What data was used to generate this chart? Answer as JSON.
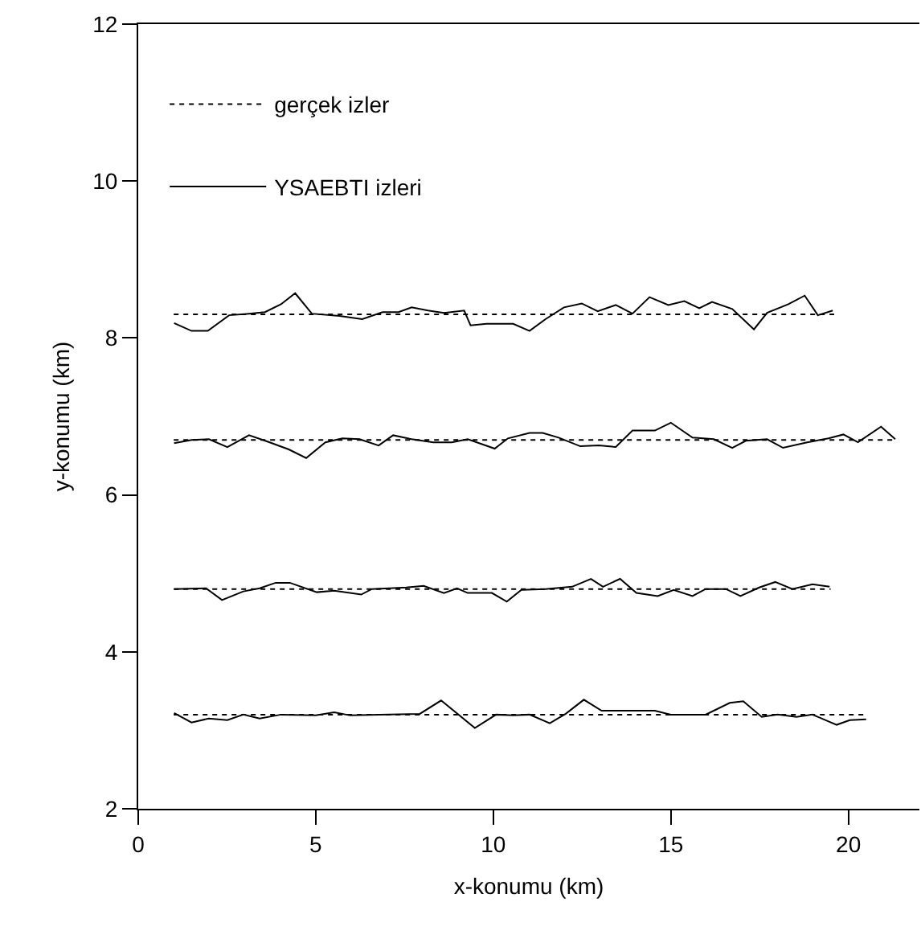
{
  "chart_data": {
    "type": "line",
    "xlabel": "x-konumu (km)",
    "ylabel": "y-konumu (km)",
    "xlim": [
      0,
      22
    ],
    "xticks": [
      0,
      5,
      10,
      15,
      20
    ],
    "ylim": [
      2,
      12
    ],
    "yticks": [
      2,
      4,
      6,
      8,
      10,
      12
    ],
    "legend": "top left",
    "marker": "none",
    "series": [
      {
        "name": "gerçek izler",
        "color": "#000000",
        "line_style": "dotted",
        "x": [
          1.0,
          19.6
        ],
        "values": [
          8.3,
          8.3
        ]
      },
      {
        "color": "#000000",
        "line_style": "dotted",
        "x": [
          1.0,
          21.3
        ],
        "values": [
          6.7,
          6.7
        ]
      },
      {
        "color": "#000000",
        "line_style": "dotted",
        "x": [
          1.0,
          19.5
        ],
        "values": [
          4.8,
          4.8
        ]
      },
      {
        "color": "#000000",
        "line_style": "dotted",
        "x": [
          1.0,
          20.5
        ],
        "values": [
          3.2,
          3.2
        ]
      },
      {
        "name": "YSAEBTI izleri",
        "color": "#000000",
        "line_style": "solid",
        "x": [
          1.01,
          1.5,
          1.96,
          2.56,
          3.12,
          3.57,
          4.02,
          4.42,
          4.89,
          5.67,
          6.31,
          6.88,
          7.33,
          7.7,
          8.16,
          8.61,
          9.18,
          9.36,
          9.81,
          10.56,
          11.02,
          11.47,
          11.99,
          12.49,
          12.94,
          13.45,
          13.92,
          14.4,
          14.93,
          15.38,
          15.8,
          16.16,
          16.73,
          17.34,
          17.71,
          18.31,
          18.77,
          19.14,
          19.56
        ],
        "values": [
          8.19,
          8.09,
          8.09,
          8.29,
          8.31,
          8.33,
          8.43,
          8.57,
          8.31,
          8.28,
          8.24,
          8.33,
          8.33,
          8.39,
          8.35,
          8.32,
          8.35,
          8.16,
          8.18,
          8.18,
          8.09,
          8.24,
          8.39,
          8.44,
          8.34,
          8.42,
          8.31,
          8.52,
          8.42,
          8.47,
          8.38,
          8.46,
          8.37,
          8.11,
          8.32,
          8.43,
          8.54,
          8.29,
          8.35
        ]
      },
      {
        "color": "#000000",
        "line_style": "solid",
        "x": [
          1.01,
          1.5,
          1.99,
          2.51,
          3.12,
          3.64,
          4.24,
          4.73,
          5.27,
          5.75,
          6.23,
          6.77,
          7.18,
          7.7,
          8.31,
          8.83,
          9.28,
          10.04,
          10.41,
          11.02,
          11.39,
          11.84,
          12.45,
          12.97,
          13.45,
          13.92,
          14.55,
          15.0,
          15.61,
          16.21,
          16.73,
          17.11,
          17.71,
          18.16,
          18.84,
          19.44,
          19.86,
          20.27,
          20.92,
          21.32
        ],
        "values": [
          6.66,
          6.7,
          6.71,
          6.61,
          6.76,
          6.68,
          6.58,
          6.47,
          6.67,
          6.72,
          6.71,
          6.63,
          6.76,
          6.71,
          6.67,
          6.67,
          6.71,
          6.59,
          6.72,
          6.79,
          6.79,
          6.73,
          6.62,
          6.63,
          6.61,
          6.82,
          6.82,
          6.92,
          6.73,
          6.71,
          6.6,
          6.69,
          6.71,
          6.6,
          6.67,
          6.72,
          6.77,
          6.67,
          6.87,
          6.71
        ]
      },
      {
        "color": "#000000",
        "line_style": "solid",
        "x": [
          1.01,
          1.91,
          2.36,
          2.96,
          3.42,
          3.87,
          4.27,
          5.03,
          5.52,
          6.28,
          6.58,
          7.55,
          8.04,
          8.61,
          8.98,
          9.28,
          9.96,
          10.38,
          10.79,
          11.47,
          12.22,
          12.75,
          13.09,
          13.57,
          14.03,
          14.63,
          15.08,
          15.61,
          15.98,
          16.55,
          16.96,
          17.49,
          17.94,
          18.42,
          18.99,
          19.47
        ],
        "values": [
          4.8,
          4.81,
          4.66,
          4.77,
          4.81,
          4.88,
          4.88,
          4.76,
          4.78,
          4.73,
          4.8,
          4.82,
          4.84,
          4.75,
          4.81,
          4.75,
          4.75,
          4.64,
          4.79,
          4.8,
          4.83,
          4.93,
          4.83,
          4.93,
          4.75,
          4.71,
          4.79,
          4.71,
          4.8,
          4.8,
          4.71,
          4.82,
          4.89,
          4.8,
          4.86,
          4.83
        ]
      },
      {
        "color": "#000000",
        "line_style": "solid",
        "x": [
          1.01,
          1.5,
          1.99,
          2.51,
          2.96,
          3.42,
          4.02,
          5.0,
          5.52,
          5.97,
          6.8,
          7.93,
          8.53,
          9.48,
          10.08,
          10.56,
          11.02,
          11.59,
          12.04,
          12.55,
          13.05,
          13.65,
          14.55,
          15.0,
          15.98,
          16.66,
          17.04,
          17.56,
          18.01,
          18.54,
          18.99,
          19.67,
          20.04,
          20.5
        ],
        "values": [
          3.22,
          3.1,
          3.15,
          3.13,
          3.2,
          3.15,
          3.2,
          3.19,
          3.23,
          3.19,
          3.2,
          3.21,
          3.38,
          3.03,
          3.2,
          3.19,
          3.2,
          3.09,
          3.21,
          3.39,
          3.25,
          3.25,
          3.25,
          3.2,
          3.2,
          3.35,
          3.37,
          3.17,
          3.2,
          3.17,
          3.2,
          3.07,
          3.13,
          3.14
        ]
      }
    ]
  }
}
